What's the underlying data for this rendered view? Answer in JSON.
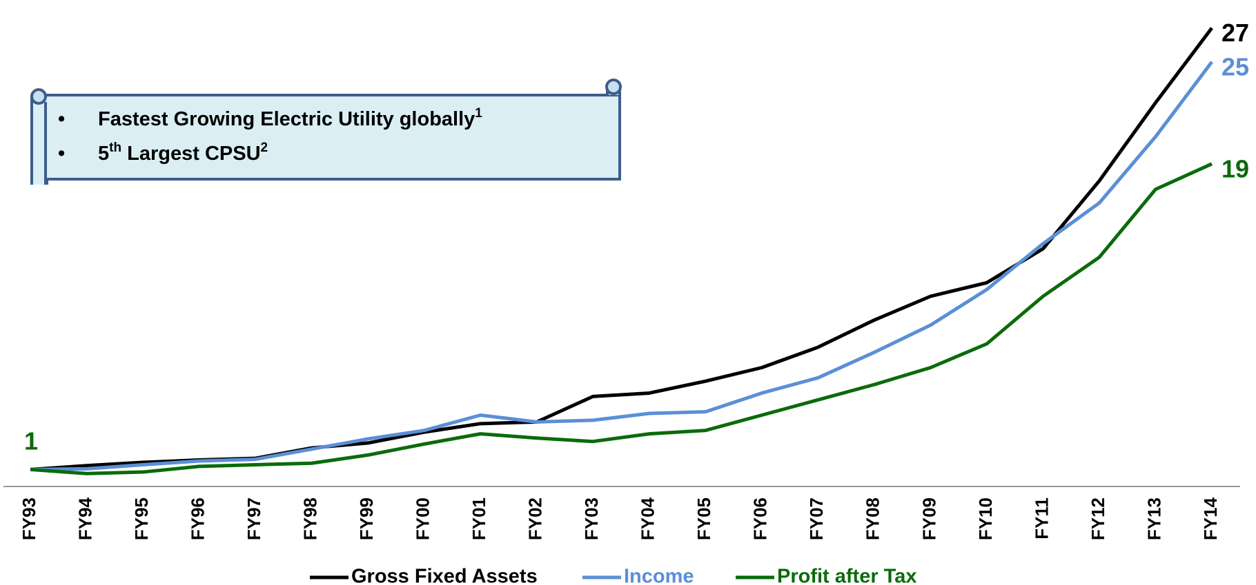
{
  "chart_data": {
    "type": "line",
    "categories": [
      "FY93",
      "FY94",
      "FY95",
      "FY96",
      "FY97",
      "FY98",
      "FY99",
      "FY00",
      "FY01",
      "FY02",
      "FY03",
      "FY04",
      "FY05",
      "FY06",
      "FY07",
      "FY08",
      "FY09",
      "FY10",
      "FY11",
      "FY12",
      "FY13",
      "FY14"
    ],
    "series": [
      {
        "name": "Gross Fixed Assets",
        "color": "#000000",
        "values": [
          1,
          1.23,
          1.42,
          1.56,
          1.66,
          2.27,
          2.56,
          3.2,
          3.7,
          3.8,
          5.3,
          5.5,
          6.2,
          7.0,
          8.2,
          9.8,
          11.2,
          12.0,
          14.0,
          18.0,
          22.6,
          27
        ]
      },
      {
        "name": "Income",
        "color": "#5b8fd6",
        "values": [
          1,
          1.04,
          1.28,
          1.5,
          1.6,
          2.2,
          2.8,
          3.3,
          4.2,
          3.8,
          3.9,
          4.3,
          4.4,
          5.5,
          6.4,
          7.9,
          9.5,
          11.6,
          14.3,
          16.7,
          20.6,
          25
        ]
      },
      {
        "name": "Profit after Tax",
        "color": "#0a6b0a",
        "values": [
          1,
          0.76,
          0.85,
          1.18,
          1.28,
          1.37,
          1.85,
          2.5,
          3.1,
          2.85,
          2.65,
          3.1,
          3.3,
          4.2,
          5.1,
          6.0,
          7.0,
          8.4,
          11.2,
          13.5,
          17.5,
          19
        ]
      }
    ],
    "ylim": [
      0,
      28
    ],
    "legend": "bottom",
    "callout": {
      "items": [
        [
          {
            "text": "Fastest Growing Electric Utility globally"
          },
          {
            "sup": "1"
          }
        ],
        [
          {
            "text": "5"
          },
          {
            "sup": "th"
          },
          {
            "text": " Largest CPSU"
          },
          {
            "sup": "2"
          }
        ]
      ]
    }
  }
}
